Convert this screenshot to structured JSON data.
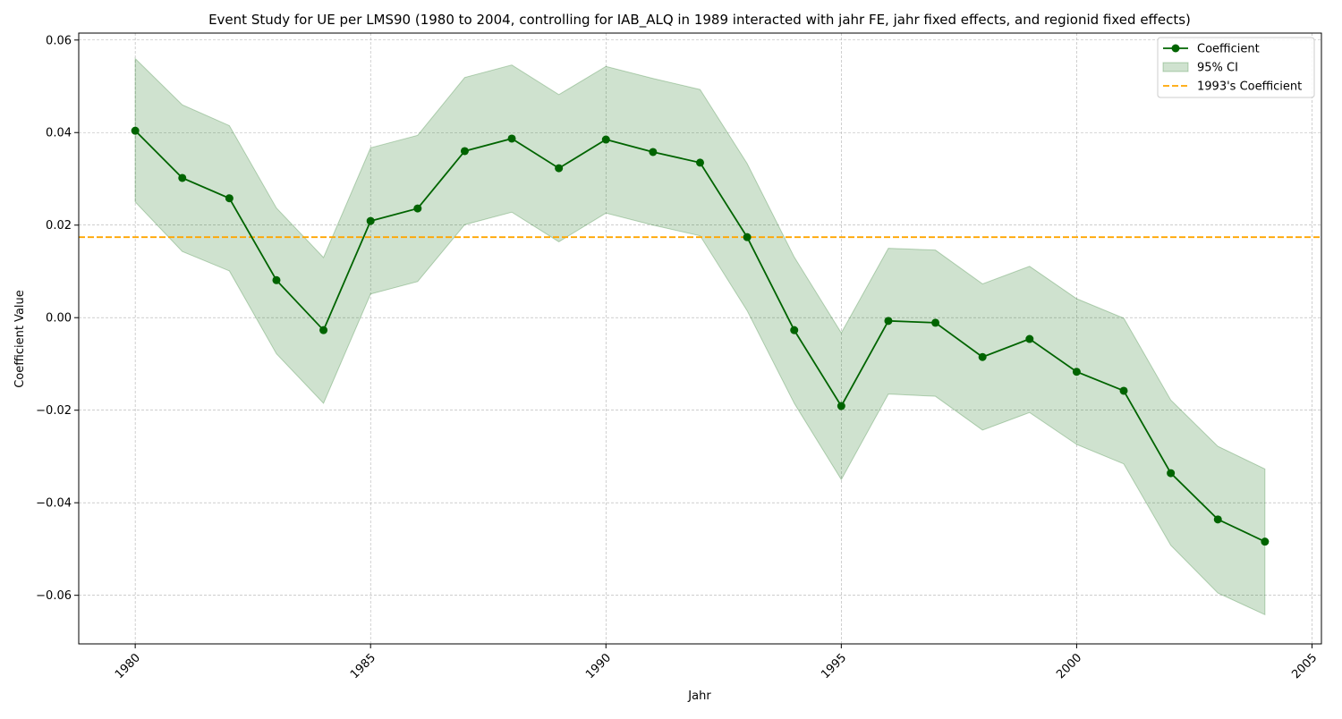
{
  "chart_data": {
    "type": "line",
    "title": "Event Study for UE per LMS90 (1980 to 2004, controlling for IAB_ALQ in 1989 interacted with jahr FE, jahr fixed effects, and regionid fixed effects)",
    "xlabel": "Jahr",
    "ylabel": "Coefficient Value",
    "xlim": [
      1978.8,
      2005.2
    ],
    "ylim": [
      -0.0705,
      0.0615
    ],
    "x_ticks": [
      1980,
      1985,
      1990,
      1995,
      2000,
      2005
    ],
    "y_ticks": [
      -0.06,
      -0.04,
      -0.02,
      0.0,
      0.02,
      0.04,
      0.06
    ],
    "y_tick_labels": [
      "−0.06",
      "−0.04",
      "−0.02",
      "0.00",
      "0.02",
      "0.04",
      "0.06"
    ],
    "grid": true,
    "legend_position": "top-right",
    "x": [
      1980,
      1981,
      1982,
      1983,
      1984,
      1985,
      1986,
      1987,
      1988,
      1989,
      1990,
      1991,
      1992,
      1993,
      1994,
      1995,
      1996,
      1997,
      1998,
      1999,
      2000,
      2001,
      2002,
      2003,
      2004
    ],
    "series": [
      {
        "name": "Coefficient",
        "color": "#006400",
        "values": [
          0.0404,
          0.0302,
          0.0258,
          0.0081,
          -0.0027,
          0.0209,
          0.0236,
          0.036,
          0.0387,
          0.0323,
          0.0385,
          0.0358,
          0.0335,
          0.0174,
          -0.0027,
          -0.0191,
          -0.0007,
          -0.0011,
          -0.0085,
          -0.0046,
          -0.0117,
          -0.0158,
          -0.0336,
          -0.0436,
          -0.0484
        ]
      }
    ],
    "ci": {
      "name": "95% CI",
      "color": "#006400",
      "opacity": 0.19,
      "lower": [
        0.025,
        0.0143,
        0.0101,
        -0.0078,
        -0.0185,
        0.0051,
        0.0078,
        0.0201,
        0.0228,
        0.0164,
        0.0226,
        0.02,
        0.0177,
        0.0015,
        -0.0185,
        -0.035,
        -0.0165,
        -0.017,
        -0.0243,
        -0.0205,
        -0.0274,
        -0.0316,
        -0.0492,
        -0.0595,
        -0.0642
      ],
      "upper": [
        0.056,
        0.046,
        0.0415,
        0.0237,
        0.013,
        0.0367,
        0.0394,
        0.0519,
        0.0546,
        0.0482,
        0.0543,
        0.0517,
        0.0493,
        0.0333,
        0.0131,
        -0.0033,
        0.015,
        0.0146,
        0.0073,
        0.0111,
        0.0041,
        -0.0001,
        -0.0178,
        -0.0278,
        -0.0327
      ]
    },
    "reference_line": {
      "name": "1993's Coefficient",
      "value": 0.0174,
      "color": "#FFA500",
      "style": "dashed"
    }
  }
}
